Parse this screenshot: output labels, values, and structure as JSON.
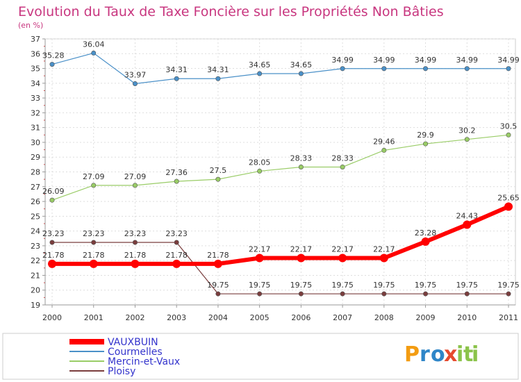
{
  "chart_data": {
    "type": "line",
    "title": "Evolution du Taux de Taxe Foncière sur les Propriétés Non Bâties",
    "subtitle": "(en %)",
    "xlabel": "",
    "ylabel": "",
    "x": [
      "2000",
      "2001",
      "2002",
      "2003",
      "2004",
      "2005",
      "2006",
      "2007",
      "2008",
      "2009",
      "2010",
      "2011"
    ],
    "ylim": [
      19,
      37
    ],
    "yticks": [
      19,
      20,
      21,
      22,
      23,
      24,
      25,
      26,
      27,
      28,
      29,
      30,
      31,
      32,
      33,
      34,
      35,
      36,
      37
    ],
    "grid": true,
    "legend_position": "bottom-left",
    "series": [
      {
        "name": "VAUXBUIN",
        "color": "#ff0000",
        "values": [
          21.78,
          21.78,
          21.78,
          21.78,
          21.78,
          22.17,
          22.17,
          22.17,
          22.17,
          23.28,
          24.43,
          25.65
        ],
        "labels": [
          "21.78",
          "21.78",
          "21.78",
          "21.78",
          "21.78",
          "22.17",
          "22.17",
          "22.17",
          "22.17",
          "23.28",
          "24.43",
          "25.65"
        ]
      },
      {
        "name": "Courmelles",
        "color": "#4a90c8",
        "values": [
          35.28,
          36.04,
          33.97,
          34.31,
          34.31,
          34.65,
          34.65,
          34.99,
          34.99,
          34.99,
          34.99,
          34.99
        ],
        "labels": [
          "35.28",
          "36.04",
          "33.97",
          "34.31",
          "34.31",
          "34.65",
          "34.65",
          "34.99",
          "34.99",
          "34.99",
          "34.99",
          "34.99"
        ]
      },
      {
        "name": "Mercin-et-Vaux",
        "color": "#99cc66",
        "values": [
          26.09,
          27.09,
          27.09,
          27.36,
          27.5,
          28.05,
          28.33,
          28.33,
          29.46,
          29.9,
          30.2,
          30.5
        ],
        "labels": [
          "26.09",
          "27.09",
          "27.09",
          "27.36",
          "27.5",
          "28.05",
          "28.33",
          "28.33",
          "29.46",
          "29.9",
          "30.2",
          "30.5"
        ]
      },
      {
        "name": "Ploisy",
        "color": "#7a3d3d",
        "values": [
          23.23,
          23.23,
          23.23,
          23.23,
          19.75,
          19.75,
          19.75,
          19.75,
          19.75,
          19.75,
          19.75,
          19.75
        ],
        "labels": [
          "23.23",
          "23.23",
          "23.23",
          "23.23",
          "19.75",
          "19.75",
          "19.75",
          "19.75",
          "19.75",
          "19.75",
          "19.75",
          "19.75"
        ]
      }
    ]
  },
  "logo": {
    "letters": [
      "P",
      "r",
      "o",
      "x",
      "i",
      "t",
      "i"
    ],
    "colors": [
      "#f39c12",
      "#2f86c8",
      "#2f86c8",
      "#e64a2e",
      "#8bc34a",
      "#8bc34a",
      "#8bc34a"
    ]
  }
}
